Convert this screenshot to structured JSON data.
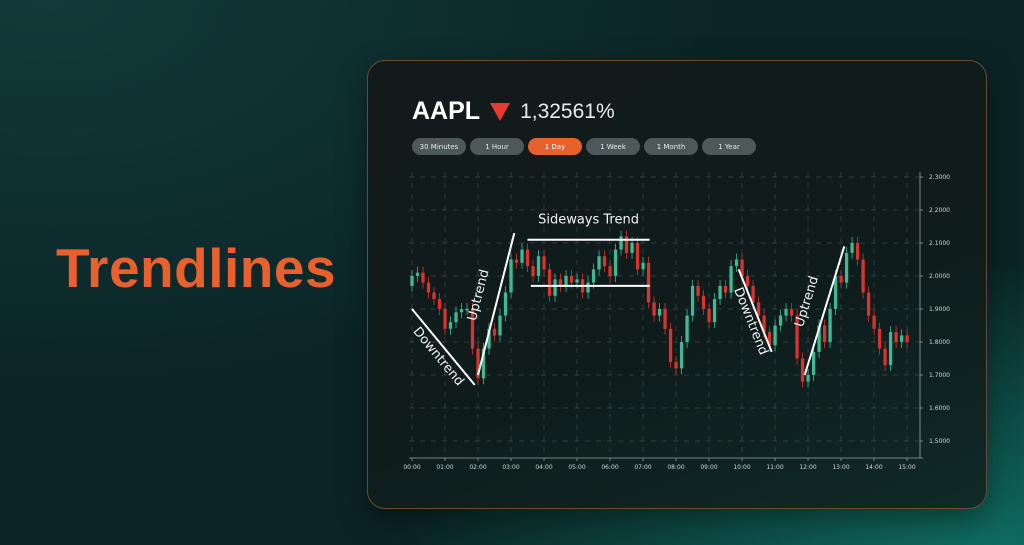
{
  "headline": "Trendlines",
  "ticker": {
    "symbol": "AAPL",
    "direction": "down",
    "change": "1,32561%",
    "down_color": "#e53a2f"
  },
  "timeframes": [
    {
      "label": "30 Minutes",
      "active": false
    },
    {
      "label": "1 Hour",
      "active": false
    },
    {
      "label": "1 Day",
      "active": true
    },
    {
      "label": "1 Week",
      "active": false
    },
    {
      "label": "1 Month",
      "active": false
    },
    {
      "label": "1 Year",
      "active": false
    }
  ],
  "colors": {
    "accent": "#e8612c",
    "up": "#3fb995",
    "down": "#d8342d"
  },
  "chart_data": {
    "type": "candlestick",
    "x_tick_labels": [
      "00:00",
      "01:00",
      "02:00",
      "03:00",
      "04:00",
      "05:00",
      "06:00",
      "07:00",
      "08:00",
      "09:00",
      "10:00",
      "11:00",
      "12:00",
      "13:00",
      "14:00",
      "15:00"
    ],
    "y_tick_labels": [
      "2.3000",
      "2.2000",
      "2.1000",
      "2.0000",
      "1.9000",
      "1.8000",
      "1.7000",
      "1.6000",
      "1.5000"
    ],
    "xlim_hours": [
      0,
      15
    ],
    "ylim": [
      1.5,
      2.3
    ],
    "y_axis_side": "right",
    "grid": "dashed",
    "first_open": 1.97,
    "candle_interval_hours": 0.1667,
    "closes": [
      2.0,
      2.01,
      1.98,
      1.95,
      1.93,
      1.9,
      1.84,
      1.86,
      1.89,
      1.9,
      1.9,
      1.78,
      1.69,
      1.78,
      1.84,
      1.82,
      1.88,
      1.95,
      2.05,
      2.04,
      2.08,
      2.03,
      2.0,
      2.06,
      2.02,
      1.94,
      1.99,
      1.97,
      2.0,
      1.98,
      1.99,
      1.95,
      1.98,
      2.02,
      2.06,
      2.03,
      2.0,
      2.08,
      2.12,
      2.07,
      2.1,
      2.02,
      2.04,
      1.92,
      1.88,
      1.9,
      1.84,
      1.74,
      1.72,
      1.8,
      1.88,
      1.97,
      1.94,
      1.9,
      1.86,
      1.93,
      1.97,
      1.95,
      2.03,
      2.05,
      2.0,
      1.97,
      1.92,
      1.88,
      1.83,
      1.79,
      1.85,
      1.88,
      1.9,
      1.88,
      1.75,
      1.68,
      1.7,
      1.77,
      1.85,
      1.8,
      1.9,
      2.0,
      1.98,
      2.07,
      2.1,
      2.05,
      1.95,
      1.88,
      1.84,
      1.78,
      1.73,
      1.83,
      1.8,
      1.82,
      1.8
    ],
    "annotations": [
      {
        "label": "Downtrend",
        "from": [
          0.0,
          1.9
        ],
        "to": [
          1.9,
          1.67
        ]
      },
      {
        "label": "Uptrend",
        "from": [
          2.0,
          1.7
        ],
        "to": [
          3.1,
          2.13
        ]
      },
      {
        "label": "Sideways Trend",
        "from": [
          3.5,
          2.11
        ],
        "to": [
          7.2,
          2.11
        ]
      },
      {
        "label": "",
        "from": [
          3.6,
          1.97
        ],
        "to": [
          7.2,
          1.97
        ]
      },
      {
        "label": "Downtrend",
        "from": [
          9.9,
          2.02
        ],
        "to": [
          10.9,
          1.77
        ]
      },
      {
        "label": "Uptrend",
        "from": [
          11.9,
          1.7
        ],
        "to": [
          13.1,
          2.09
        ]
      }
    ]
  }
}
